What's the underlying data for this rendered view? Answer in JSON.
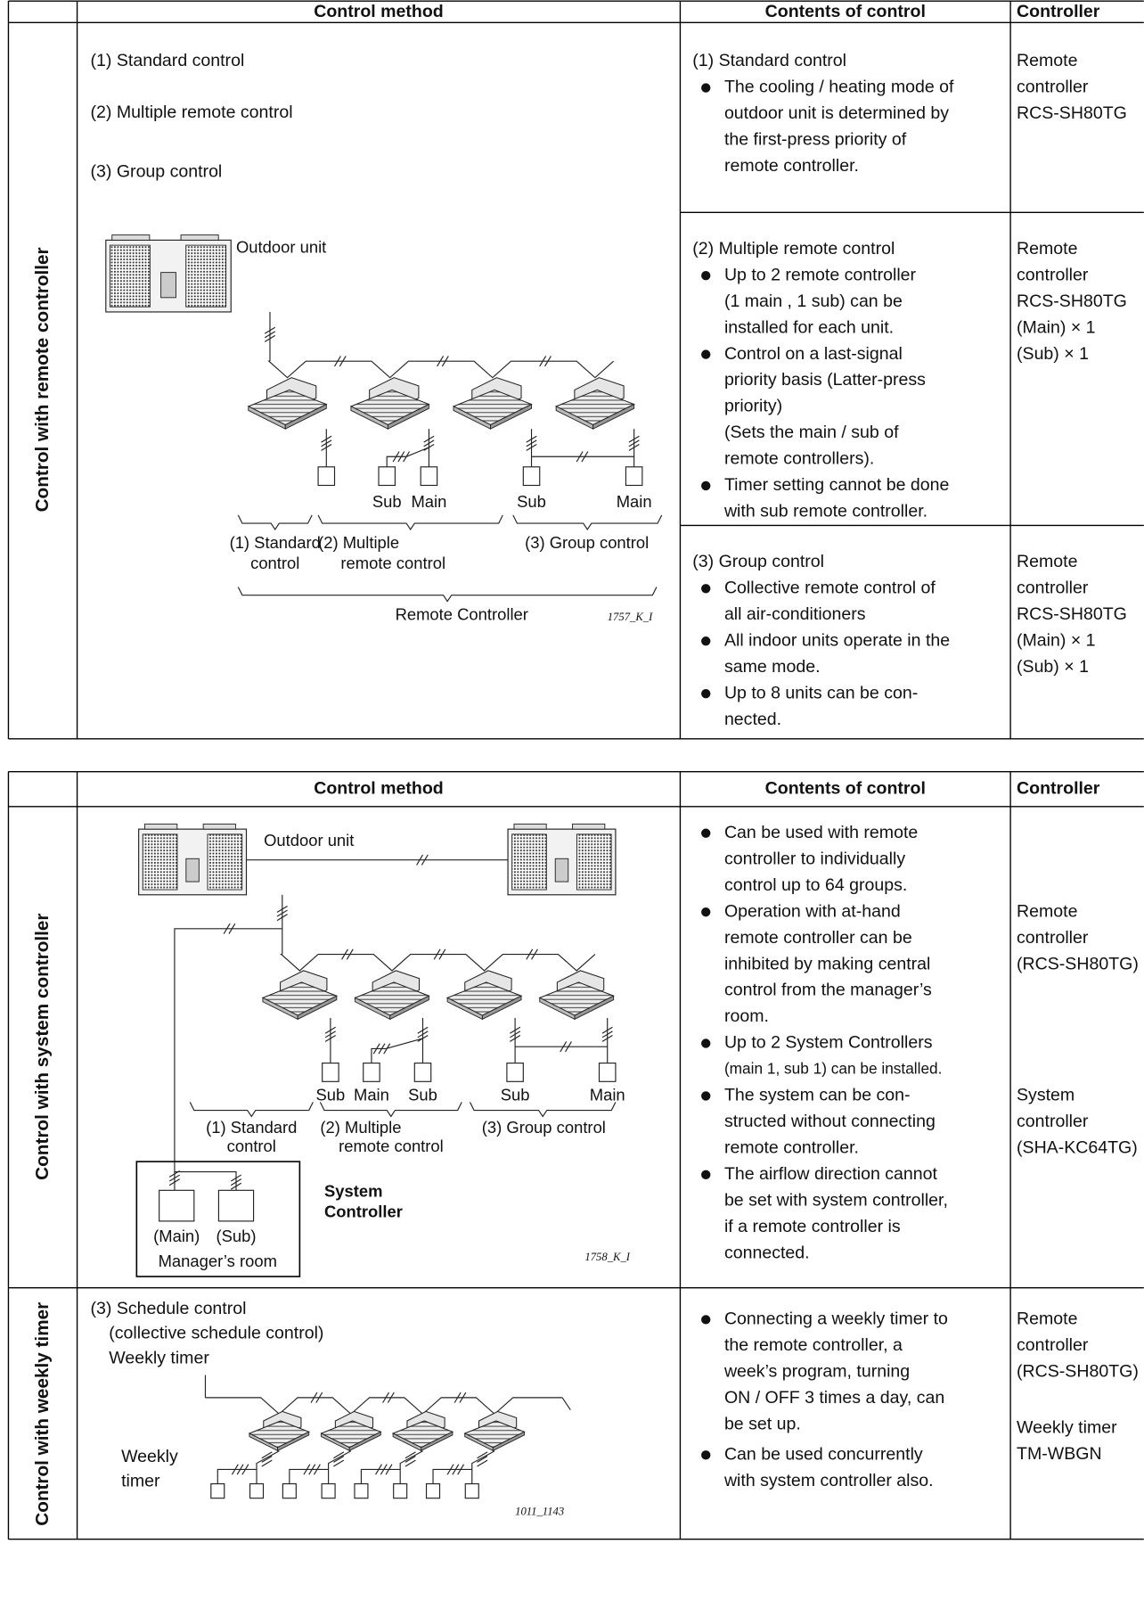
{
  "table1": {
    "headers": [
      "Control method",
      "Contents of control",
      "Controller"
    ],
    "row_label": "Control with remote controller",
    "method_items": [
      "(1) Standard control",
      "(2) Multiple remote control",
      "(3) Group control"
    ],
    "diagram": {
      "outdoor_unit": "Outdoor unit",
      "remote_labels": [
        "Sub",
        "Main",
        "Sub",
        "Main"
      ],
      "group_labels": [
        [
          "(1) Standard",
          "control"
        ],
        [
          "(2) Multiple",
          "remote control"
        ],
        [
          "(3) Group control"
        ]
      ],
      "caption": "Remote Controller",
      "figure_code": "1757_K_I"
    },
    "cells": [
      {
        "title": "(1) Standard control",
        "bullets": [
          [
            "The cooling / heating mode of",
            "outdoor unit is determined by",
            "the first-press priority of",
            "remote controller."
          ]
        ],
        "controller": [
          "Remote",
          "controller",
          "RCS-SH80TG"
        ]
      },
      {
        "title": "(2) Multiple remote control",
        "bullets": [
          [
            "Up to 2 remote controller",
            "(1 main , 1 sub) can be",
            "installed for each unit."
          ],
          [
            "Control on a last-signal",
            "priority basis (Latter-press",
            "priority)",
            "(Sets the main / sub of",
            "remote controllers)."
          ],
          [
            "Timer setting cannot be done",
            "with sub remote controller."
          ]
        ],
        "controller": [
          "Remote",
          "controller",
          "RCS-SH80TG",
          "(Main) × 1",
          "(Sub) × 1"
        ]
      },
      {
        "title": "(3) Group control",
        "bullets": [
          [
            "Collective remote control of",
            "all air-conditioners"
          ],
          [
            "All indoor units operate in the",
            "same mode."
          ],
          [
            "Up to 8 units can be con-",
            "nected."
          ]
        ],
        "controller": [
          "Remote",
          "controller",
          "RCS-SH80TG",
          "(Main) × 1",
          "(Sub) × 1"
        ]
      }
    ]
  },
  "table2": {
    "headers": [
      "Control method",
      "Contents of control",
      "Controller"
    ],
    "rows": [
      {
        "row_label": "Control with system controller",
        "diagram": {
          "outdoor_unit": "Outdoor unit",
          "remote_labels": [
            "Sub",
            "Main",
            "Sub",
            "Sub",
            "Main"
          ],
          "group_labels": [
            [
              "(1) Standard",
              "control"
            ],
            [
              "(2) Multiple",
              "remote control"
            ],
            [
              "(3) Group control"
            ]
          ],
          "manager_units": [
            "(Main)",
            "(Sub)"
          ],
          "manager_room": "Manager’s room",
          "system_controller": [
            "System",
            "Controller"
          ],
          "figure_code": "1758_K_I"
        },
        "bullets": [
          [
            "Can be used with remote",
            "controller to individually",
            "control up to 64 groups."
          ],
          [
            "Operation with at-hand",
            "remote controller can be",
            "inhibited by making central",
            "control from the manager’s",
            "room."
          ],
          [
            "Up to 2 System Controllers",
            "(main 1, sub 1) can be installed."
          ],
          [
            "The system can be con-",
            "structed without connecting",
            "remote controller."
          ],
          [
            "The airflow direction cannot",
            "be set with system controller,",
            "if a remote controller is",
            "connected."
          ]
        ],
        "controller": [
          [
            "Remote",
            "controller",
            "(RCS-SH80TG)"
          ],
          [
            "System",
            "controller",
            "(SHA-KC64TG)"
          ]
        ]
      },
      {
        "row_label": "Control with weekly timer",
        "method_lines": [
          "(3) Schedule control",
          "(collective schedule control)",
          "Weekly timer"
        ],
        "diagram": {
          "timer_label": [
            "Weekly",
            "timer"
          ],
          "figure_code": "1011_1143"
        },
        "bullets": [
          [
            "Connecting a weekly timer to",
            "the remote controller, a",
            "week’s program, turning",
            "ON / OFF 3 times a day, can",
            "be set up."
          ],
          [
            "Can be used concurrently",
            "with system controller also."
          ]
        ],
        "controller": [
          [
            "Remote",
            "controller",
            "(RCS-SH80TG)"
          ],
          [
            "Weekly timer",
            "TM-WBGN"
          ]
        ]
      }
    ]
  }
}
